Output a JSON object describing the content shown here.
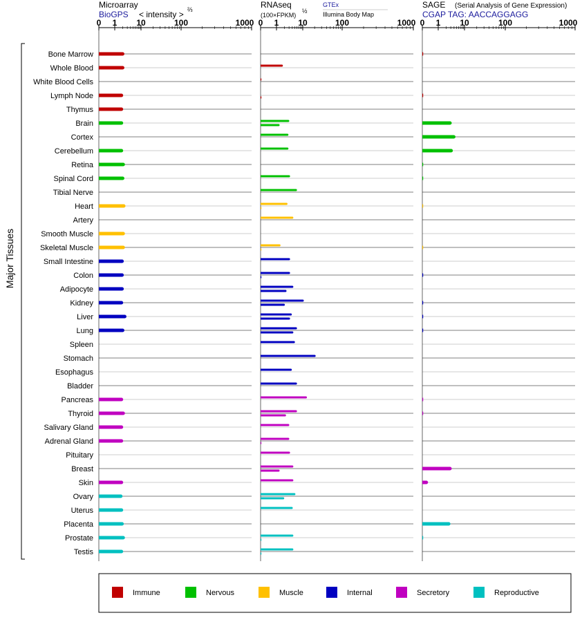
{
  "headers": {
    "microarray": {
      "title": "Microarray",
      "source": "BioGPS",
      "scale": "< intensity >",
      "exponent": "⅔"
    },
    "rnaseq": {
      "title": "RNAseq",
      "units": "(100×FPKM)",
      "exponent": "½",
      "source1": "GTEx",
      "source2": "Illumina Body Map"
    },
    "sage": {
      "title": "SAGE",
      "subtitle": "(Serial Analysis of Gene Expression)",
      "tag": "CGAP TAG: AACCAGGAGG"
    }
  },
  "y_group_label": "Major Tissues",
  "legend": [
    {
      "label": "Immune",
      "color": "#c00000"
    },
    {
      "label": "Nervous",
      "color": "#00c000"
    },
    {
      "label": "Muscle",
      "color": "#ffc000"
    },
    {
      "label": "Internal",
      "color": "#0000c0"
    },
    {
      "label": "Secretory",
      "color": "#c000c0"
    },
    {
      "label": "Reproductive",
      "color": "#00c0c0"
    }
  ],
  "chart_data": [
    {
      "type": "bar",
      "title": "Microarray BioGPS < intensity >⅔",
      "scale": "intensity^(2/3)",
      "ticks": [
        "0",
        "1",
        "10",
        "100",
        "1000"
      ],
      "tick_values": [
        0,
        1,
        10,
        100,
        1000
      ],
      "xlim": [
        0,
        1000
      ],
      "categories": [
        "Bone Marrow",
        "Whole Blood",
        "White Blood Cells",
        "Lymph Node",
        "Thymus",
        "Brain",
        "Cortex",
        "Cerebellum",
        "Retina",
        "Spinal Cord",
        "Tibial Nerve",
        "Heart",
        "Artery",
        "Smooth Muscle",
        "Skeletal Muscle",
        "Small Intestine",
        "Colon",
        "Adipocyte",
        "Kidney",
        "Liver",
        "Lung",
        "Spleen",
        "Stomach",
        "Esophagus",
        "Bladder",
        "Pancreas",
        "Thyroid",
        "Salivary Gland",
        "Adrenal Gland",
        "Pituitary",
        "Breast",
        "Skin",
        "Ovary",
        "Uterus",
        "Placenta",
        "Prostate",
        "Testis"
      ],
      "groups": [
        "Immune",
        "Immune",
        "Immune",
        "Immune",
        "Immune",
        "Nervous",
        "Nervous",
        "Nervous",
        "Nervous",
        "Nervous",
        "Nervous",
        "Muscle",
        "Muscle",
        "Muscle",
        "Muscle",
        "Internal",
        "Internal",
        "Internal",
        "Internal",
        "Internal",
        "Internal",
        "Internal",
        "Internal",
        "Internal",
        "Internal",
        "Secretory",
        "Secretory",
        "Secretory",
        "Secretory",
        "Secretory",
        "Secretory",
        "Secretory",
        "Reproductive",
        "Reproductive",
        "Reproductive",
        "Reproductive",
        "Reproductive"
      ],
      "values": [
        2.0,
        2.0,
        null,
        1.8,
        1.8,
        1.8,
        null,
        1.8,
        2.1,
        2.0,
        null,
        2.2,
        null,
        2.1,
        2.1,
        1.9,
        1.9,
        1.9,
        1.8,
        2.4,
        2.0,
        null,
        null,
        null,
        null,
        1.8,
        2.1,
        1.8,
        1.8,
        null,
        null,
        1.8,
        1.7,
        1.8,
        1.9,
        2.1,
        1.8
      ]
    },
    {
      "type": "bar",
      "title": "RNAseq (100×FPKM)½",
      "scale": "sqrt",
      "ticks": [
        "0",
        "1",
        "10",
        "100",
        "1000"
      ],
      "tick_values": [
        0,
        1,
        10,
        100,
        1000
      ],
      "xlim": [
        0,
        1000
      ],
      "series": [
        {
          "name": "GTEx",
          "values": [
            null,
            1.6,
            0.02,
            null,
            null,
            2.8,
            2.6,
            2.6,
            null,
            3.0,
            5.5,
            2.4,
            4.0,
            null,
            1.3,
            3.0,
            3.0,
            4.0,
            10.0,
            3.5,
            5.5,
            4.6,
            20.0,
            3.5,
            5.5,
            12.0,
            5.5,
            2.8,
            2.8,
            3.0,
            4.0,
            4.0,
            4.8,
            3.8,
            null,
            4.0,
            4.0
          ]
        },
        {
          "name": "Illumina Body Map",
          "values": [
            null,
            null,
            null,
            0.02,
            null,
            1.2,
            null,
            null,
            null,
            null,
            null,
            0.01,
            null,
            null,
            0.01,
            null,
            0.02,
            2.2,
            1.9,
            3.0,
            4.0,
            null,
            null,
            null,
            null,
            null,
            2.1,
            null,
            0.01,
            null,
            1.2,
            null,
            1.8,
            null,
            null,
            0.01,
            0.02
          ]
        }
      ]
    },
    {
      "type": "bar",
      "title": "SAGE (Serial Analysis of Gene Expression) CGAP TAG: AACCAGGAGG",
      "scale": "log-like",
      "ticks": [
        "0",
        "1",
        "10",
        "100",
        "1000"
      ],
      "tick_values": [
        0,
        1,
        10,
        100,
        1000
      ],
      "xlim": [
        0,
        1000
      ],
      "values": [
        0.02,
        null,
        null,
        0.02,
        null,
        2.8,
        3.9,
        3.1,
        0.02,
        0.02,
        null,
        0.01,
        null,
        null,
        0.01,
        null,
        0.02,
        null,
        0.02,
        0.02,
        0.02,
        null,
        null,
        null,
        null,
        0.02,
        0.02,
        null,
        null,
        null,
        2.8,
        0.25,
        null,
        null,
        2.5,
        0.02,
        null
      ]
    }
  ]
}
